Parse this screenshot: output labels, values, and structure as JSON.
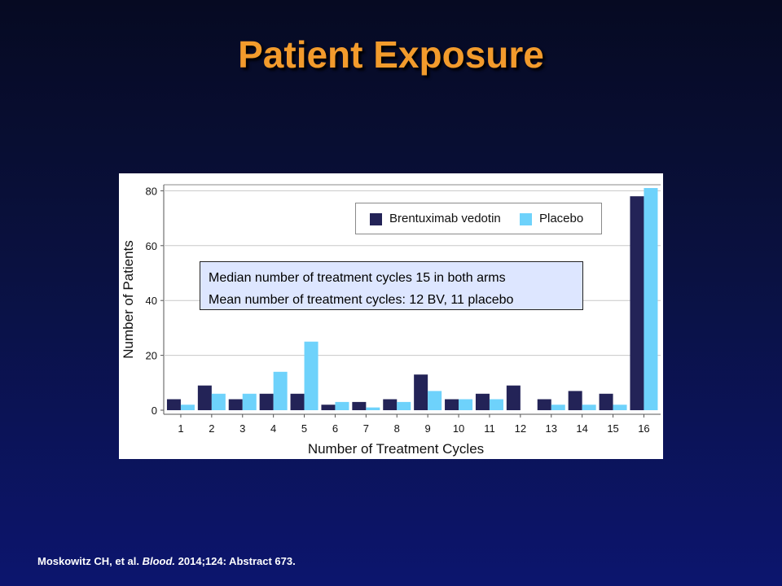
{
  "title": "Patient Exposure",
  "citation": {
    "authors": "Moskowitz CH, et al.",
    "journal": "Blood.",
    "details": "2014;124: Abstract 673."
  },
  "colors": {
    "brentuximab": "#232357",
    "placebo": "#6ed2fb",
    "title": "#f29b2c"
  },
  "chart_data": {
    "type": "bar",
    "xlabel": "Number of Treatment Cycles",
    "ylabel": "Number of Patients",
    "categories": [
      "1",
      "2",
      "3",
      "4",
      "5",
      "6",
      "7",
      "8",
      "9",
      "10",
      "11",
      "12",
      "13",
      "14",
      "15",
      "16"
    ],
    "yticks": [
      0,
      20,
      40,
      60,
      80
    ],
    "ylim": [
      0,
      83
    ],
    "grid": true,
    "legend_position": "top-right",
    "series": [
      {
        "name": "Brentuximab vedotin",
        "values": [
          4,
          9,
          4,
          6,
          6,
          2,
          3,
          4,
          13,
          4,
          6,
          9,
          4,
          7,
          6,
          78
        ]
      },
      {
        "name": "Placebo",
        "values": [
          2,
          6,
          6,
          14,
          25,
          3,
          1,
          3,
          7,
          4,
          4,
          0,
          2,
          2,
          2,
          81
        ]
      }
    ],
    "annotations": [
      "Median number of treatment cycles 15 in both arms",
      "Mean number of treatment cycles: 12 BV, 11 placebo"
    ]
  }
}
